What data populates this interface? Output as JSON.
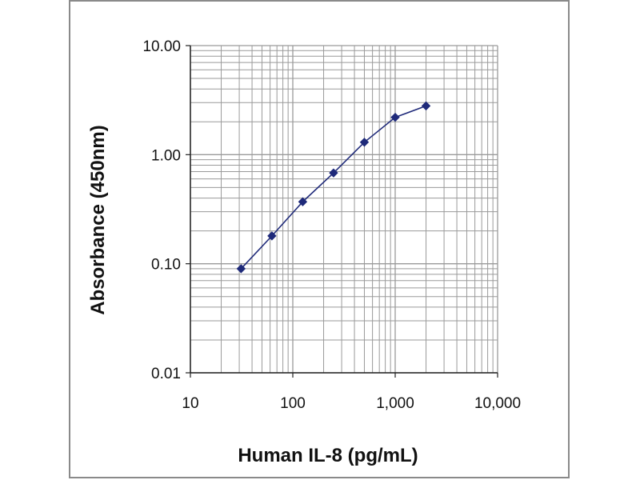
{
  "chart_data": {
    "type": "line",
    "xlabel": "Human IL-8 (pg/mL)",
    "ylabel": "Absorbance (450nm)",
    "x_scale": "log",
    "y_scale": "log",
    "xlim": [
      10,
      10000
    ],
    "ylim": [
      0.01,
      10
    ],
    "x_ticks": [
      10,
      100,
      1000,
      10000
    ],
    "x_tick_labels": [
      "10",
      "100",
      "1,000",
      "10,000"
    ],
    "y_ticks": [
      0.01,
      0.1,
      1,
      10
    ],
    "y_tick_labels": [
      "0.01",
      "0.10",
      "1.00",
      "10.00"
    ],
    "grid": true,
    "marker": "diamond",
    "colors": {
      "series": "#1f2a7a",
      "grid": "#9a9a9a",
      "axis": "#222222"
    },
    "series": [
      {
        "x": [
          31.25,
          62.5,
          125,
          250,
          500,
          1000,
          2000
        ],
        "y": [
          0.09,
          0.18,
          0.37,
          0.68,
          1.3,
          2.2,
          2.8
        ]
      }
    ]
  }
}
